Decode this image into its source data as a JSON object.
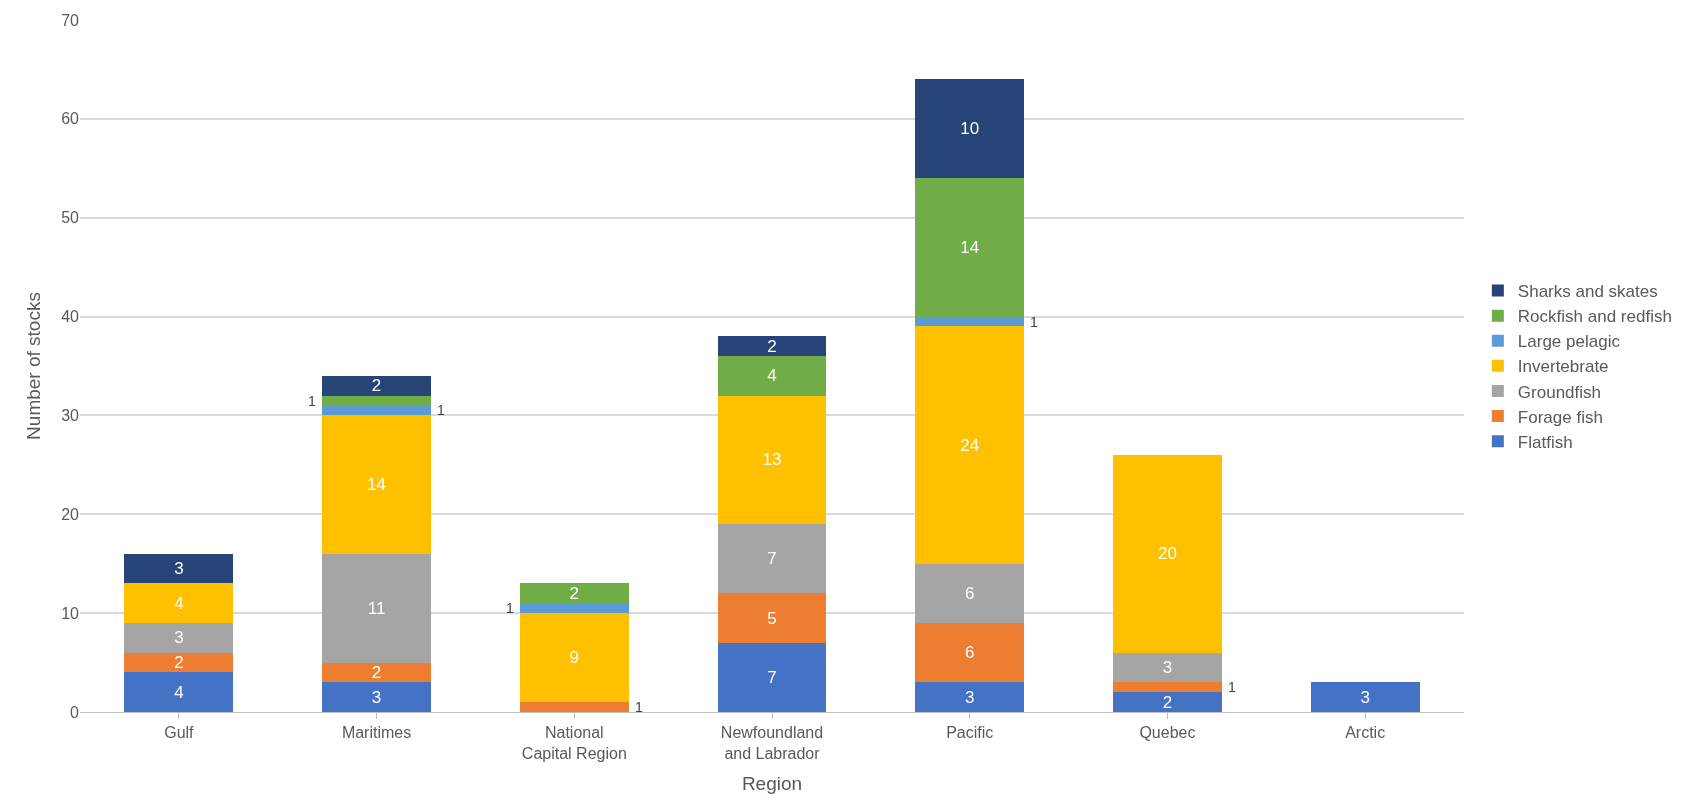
{
  "chart_data": {
    "type": "bar",
    "stacked": true,
    "xlabel": "Region",
    "ylabel": "Number of stocks",
    "categories": [
      "Gulf",
      "Maritimes",
      "National Capital Region",
      "Newfoundland and Labrador",
      "Pacific",
      "Quebec",
      "Arctic"
    ],
    "series": [
      {
        "name": "Flatfish",
        "color": "#4472c4",
        "values": [
          4,
          3,
          null,
          7,
          3,
          2,
          3
        ]
      },
      {
        "name": "Forage fish",
        "color": "#ed7d31",
        "values": [
          2,
          2,
          1,
          5,
          6,
          1,
          null
        ]
      },
      {
        "name": "Groundfish",
        "color": "#a5a5a5",
        "values": [
          3,
          11,
          null,
          7,
          6,
          3,
          null
        ]
      },
      {
        "name": "Invertebrate",
        "color": "#ffc000",
        "values": [
          4,
          14,
          9,
          13,
          24,
          20,
          null
        ]
      },
      {
        "name": "Large pelagic",
        "color": "#5b9bd5",
        "values": [
          null,
          1,
          1,
          null,
          1,
          null,
          null
        ]
      },
      {
        "name": "Rockfish and redfish",
        "color": "#70ad47",
        "values": [
          null,
          1,
          2,
          4,
          14,
          null,
          null
        ]
      },
      {
        "name": "Sharks and skates",
        "color": "#264478",
        "values": [
          3,
          2,
          null,
          2,
          10,
          null,
          null
        ]
      }
    ],
    "ylim": [
      0,
      70
    ],
    "yticks": [
      0,
      10,
      20,
      30,
      40,
      50,
      60,
      70
    ],
    "grid": "y",
    "legend": "right",
    "data_labels": true
  }
}
